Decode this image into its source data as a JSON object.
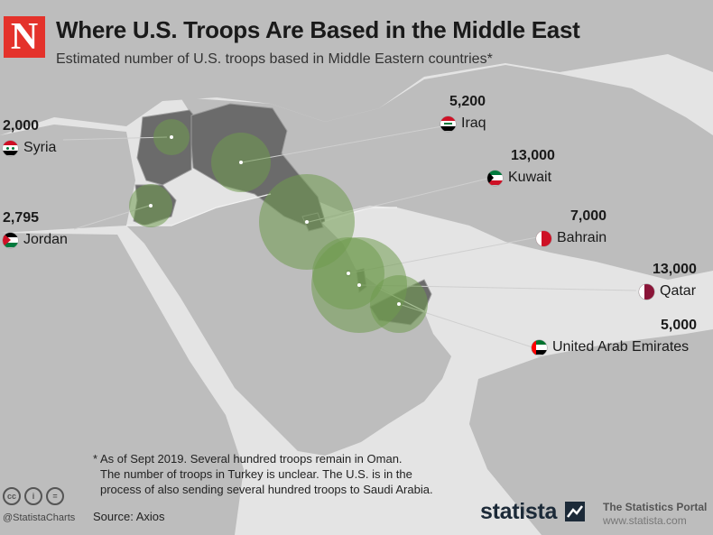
{
  "header": {
    "logo_letter": "N",
    "title": "Where U.S. Troops Are Based in the Middle East",
    "subtitle": "Estimated number of U.S. troops based in Middle Eastern countries*"
  },
  "countries": [
    {
      "name": "Syria",
      "value": "2,000"
    },
    {
      "name": "Jordan",
      "value": "2,795"
    },
    {
      "name": "Iraq",
      "value": "5,200"
    },
    {
      "name": "Kuwait",
      "value": "13,000"
    },
    {
      "name": "Bahrain",
      "value": "7,000"
    },
    {
      "name": "Qatar",
      "value": "13,000"
    },
    {
      "name": "United Arab Emirates",
      "value": "5,000"
    }
  ],
  "footnote": {
    "line1": "* As of Sept 2019. Several hundred troops remain in Oman.",
    "line2": "The number of troops in Turkey is unclear. The U.S. is in the",
    "line3": "process of also sending several hundred troops to Saudi Arabia."
  },
  "footer": {
    "cc_icons": [
      "cc",
      "i",
      "="
    ],
    "handle": "@StatistaCharts",
    "source": "Source: Axios",
    "brand": "statista",
    "portal": "The Statistics Portal",
    "portal_url": "www.statista.com"
  },
  "colors": {
    "background": "#e4e4e4",
    "land": "#bdbdbd",
    "water": "#e4e4e4",
    "highlight_country": "#6b6b6b",
    "bubble": "#6f9a4e",
    "logo_red": "#e4322b",
    "brand_navy": "#1c2a38"
  }
}
